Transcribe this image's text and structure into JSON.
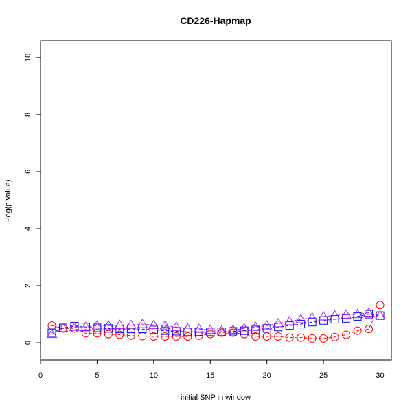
{
  "chart_data": {
    "type": "line",
    "title": "CD226-Hapmap",
    "xlabel": "initial SNP in window",
    "ylabel": "-log(p value)",
    "xlim": [
      0,
      31
    ],
    "ylim": [
      -0.6,
      10.6
    ],
    "x_ticks": [
      0,
      5,
      10,
      15,
      20,
      25,
      30
    ],
    "y_ticks": [
      0,
      2,
      4,
      6,
      8,
      10
    ],
    "grid": false,
    "legend": "none",
    "x": [
      1,
      2,
      3,
      4,
      5,
      6,
      7,
      8,
      9,
      10,
      11,
      12,
      13,
      14,
      15,
      16,
      17,
      18,
      19,
      20,
      21,
      22,
      23,
      24,
      25,
      26,
      27,
      28,
      29,
      30
    ],
    "series": [
      {
        "marker": "circle",
        "color": "#ff0000",
        "line_style": "dashed",
        "values": [
          0.6,
          0.5,
          0.5,
          0.33,
          0.33,
          0.3,
          0.28,
          0.25,
          0.23,
          0.22,
          0.22,
          0.22,
          0.22,
          0.25,
          0.3,
          0.35,
          0.35,
          0.3,
          0.22,
          0.22,
          0.22,
          0.18,
          0.18,
          0.15,
          0.15,
          0.2,
          0.28,
          0.42,
          0.48,
          1.32
        ]
      },
      {
        "marker": "square",
        "color": "#0000ff",
        "line_style": "dashed",
        "values": [
          0.35,
          0.52,
          0.58,
          0.55,
          0.52,
          0.5,
          0.48,
          0.48,
          0.48,
          0.45,
          0.42,
          0.4,
          0.38,
          0.38,
          0.38,
          0.38,
          0.4,
          0.42,
          0.45,
          0.5,
          0.55,
          0.6,
          0.65,
          0.72,
          0.78,
          0.82,
          0.85,
          0.92,
          1.0,
          0.95
        ]
      },
      {
        "marker": "triangle",
        "color": "#a020f0",
        "line_style": "dashed",
        "values": [
          0.3,
          0.5,
          0.55,
          0.55,
          0.6,
          0.6,
          0.62,
          0.62,
          0.65,
          0.62,
          0.6,
          0.55,
          0.5,
          0.48,
          0.45,
          0.42,
          0.45,
          0.5,
          0.55,
          0.6,
          0.68,
          0.75,
          0.82,
          0.88,
          0.92,
          0.95,
          0.98,
          1.0,
          1.05,
          0.95
        ]
      }
    ]
  }
}
